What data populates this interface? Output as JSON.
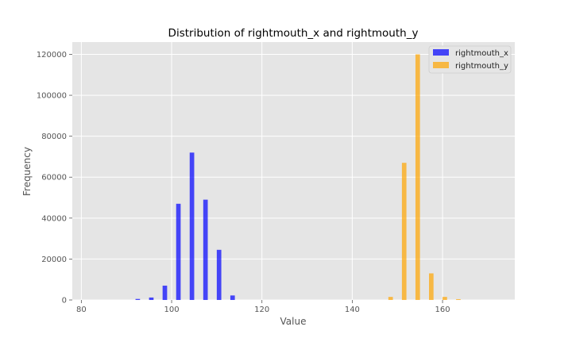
{
  "chart_data": {
    "type": "bar",
    "title": "Distribution of rightmouth_x and rightmouth_y",
    "xlabel": "Value",
    "ylabel": "Frequency",
    "xlim": [
      78,
      176
    ],
    "ylim": [
      0,
      126000
    ],
    "xticks": [
      80,
      100,
      120,
      140,
      160
    ],
    "yticks": [
      0,
      20000,
      40000,
      60000,
      80000,
      100000,
      120000
    ],
    "grid": true,
    "legend_position": "top-right",
    "bar_width": 1.0,
    "series": [
      {
        "name": "rightmouth_x",
        "color": "#0000ff",
        "x": [
          92.5,
          95.5,
          98.5,
          101.5,
          104.5,
          107.5,
          110.5,
          113.5
        ],
        "values": [
          500,
          1200,
          7000,
          47000,
          72000,
          49000,
          24500,
          2200
        ]
      },
      {
        "name": "rightmouth_y",
        "color": "#ffa500",
        "x": [
          148.5,
          151.5,
          154.5,
          157.5,
          160.5,
          163.5
        ],
        "values": [
          1500,
          67000,
          120000,
          13000,
          1500,
          400
        ]
      }
    ]
  }
}
